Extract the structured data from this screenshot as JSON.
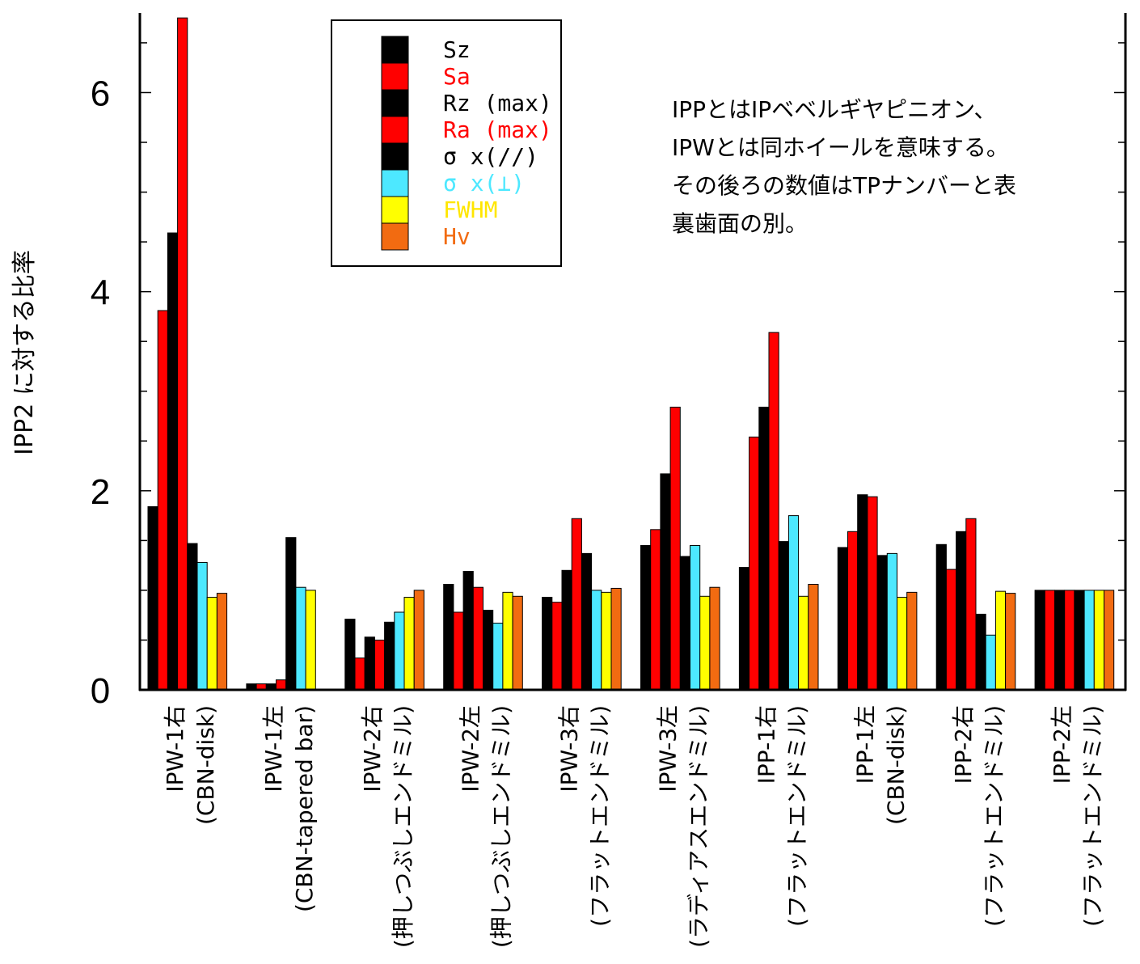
{
  "chart_data": {
    "type": "bar",
    "ylabel": "IPP2 に対する比率",
    "ylim": [
      0,
      6.8
    ],
    "yticks": [
      0,
      2,
      4,
      6
    ],
    "categories": [
      [
        "IPW-1右",
        "(CBN-disk)"
      ],
      [
        "IPW-1左",
        "(CBN-tapered bar)"
      ],
      [
        "IPW-2右",
        "(押しつぶしエンドミル)"
      ],
      [
        "IPW-2左",
        "(押しつぶしエンドミル)"
      ],
      [
        "IPW-3右",
        "(フラットエンドミル)"
      ],
      [
        "IPW-3左",
        "(ラディアスエンドミル)"
      ],
      [
        "IPP-1右",
        "(フラットエンドミル)"
      ],
      [
        "IPP-1左",
        "(CBN-disk)"
      ],
      [
        "IPP-2右",
        "(フラットエンドミル)"
      ],
      [
        "IPP-2左",
        "(フラットエンドミル)"
      ]
    ],
    "series": [
      {
        "name": "Sz",
        "color": "#000000",
        "values": [
          1.84,
          0.06,
          0.71,
          1.06,
          0.93,
          1.45,
          1.23,
          1.43,
          1.46,
          1.0
        ]
      },
      {
        "name": "Sa",
        "color": "#ff0000",
        "values": [
          3.81,
          0.06,
          0.32,
          0.78,
          0.88,
          1.61,
          2.54,
          1.59,
          1.21,
          1.0
        ]
      },
      {
        "name": "Rz (max)",
        "color": "#000000",
        "values": [
          4.59,
          0.06,
          0.53,
          1.19,
          1.2,
          2.17,
          2.84,
          1.96,
          1.59,
          1.0
        ]
      },
      {
        "name": "Ra (max)",
        "color": "#ff0000",
        "values": [
          6.75,
          0.1,
          0.5,
          1.03,
          1.72,
          2.84,
          3.59,
          1.94,
          1.72,
          1.0
        ]
      },
      {
        "name": "σ x(//)",
        "color": "#000000",
        "values": [
          1.47,
          1.53,
          0.68,
          0.8,
          1.37,
          1.34,
          1.49,
          1.35,
          0.76,
          1.0
        ]
      },
      {
        "name": "σ x(⊥)",
        "color": "#4de8ff",
        "values": [
          1.28,
          1.03,
          0.78,
          0.67,
          1.0,
          1.45,
          1.75,
          1.37,
          0.55,
          1.0
        ]
      },
      {
        "name": "FWHM",
        "color": "#ffff00",
        "values": [
          0.93,
          1.0,
          0.93,
          0.98,
          0.98,
          0.94,
          0.94,
          0.93,
          0.99,
          1.0
        ]
      },
      {
        "name": "Hv",
        "color": "#f26b11",
        "values": [
          0.97,
          null,
          1.0,
          0.94,
          1.02,
          1.03,
          1.06,
          0.98,
          0.97,
          1.0
        ]
      }
    ],
    "legend_colors": {
      "Sz": "#000000",
      "Sa": "#ff0000",
      "Rz (max)": "#000000",
      "Ra (max)": "#ff0000",
      "σ x(//)": "#000000",
      "σ x(⊥)": "#4de8ff",
      "FWHM": "#ffff00",
      "Hv": "#f26b11"
    },
    "legend_text_colors": {
      "Sz": "#000000",
      "Sa": "#ff0000",
      "Rz (max)": "#000000",
      "Ra (max)": "#ff0000",
      "σ x(//)": "#000000",
      "σ x(⊥)": "#4de8ff",
      "FWHM": "#ffe600",
      "Hv": "#f26b11"
    },
    "legend_placement": "top-center",
    "grid": false,
    "annotation": [
      "IPPとはIPベベルギヤピニオン、",
      "IPWとは同ホイールを意味する。",
      "その後ろの数値はTPナンバーと表",
      "裏歯面の別。"
    ]
  }
}
